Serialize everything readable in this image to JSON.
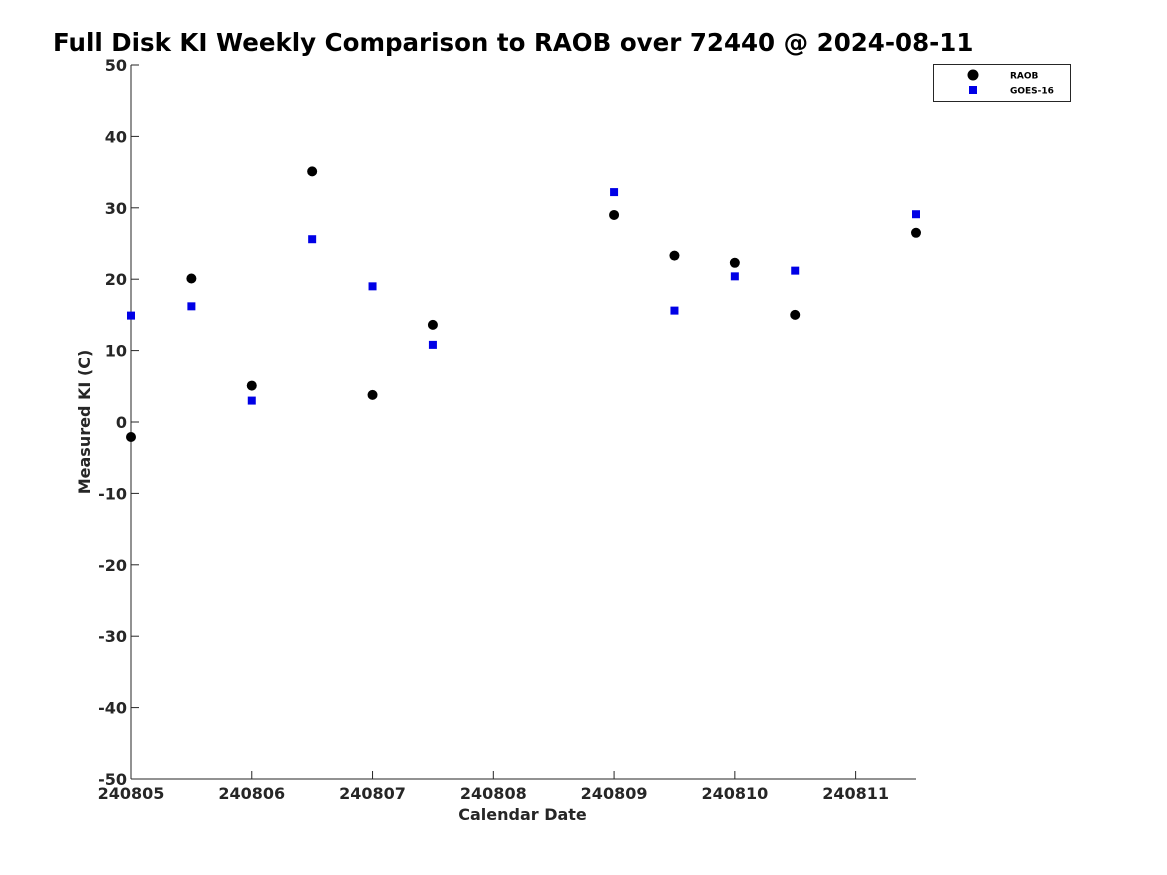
{
  "chart_data": {
    "type": "scatter",
    "title": "Full Disk KI Weekly Comparison to RAOB over 72440 @ 2024-08-11",
    "xlabel": "Calendar Date",
    "ylabel": "Measured KI (C)",
    "xlim": [
      "2024-08-05",
      "2024-08-11 12:00"
    ],
    "ylim": [
      -50,
      50
    ],
    "x_ticks": [
      "240805",
      "240806",
      "240807",
      "240808",
      "240809",
      "240810",
      "240811"
    ],
    "y_ticks": [
      "50",
      "40",
      "30",
      "20",
      "10",
      "0",
      "-10",
      "-20",
      "-30",
      "-40",
      "-50"
    ],
    "grid": false,
    "legend_position": "top-right",
    "series": [
      {
        "name": "RAOB",
        "marker": "circle",
        "color": "#000000",
        "points": [
          {
            "x": "2024-08-05 00:00",
            "y": -2.1
          },
          {
            "x": "2024-08-05 12:00",
            "y": 20.1
          },
          {
            "x": "2024-08-06 00:00",
            "y": 5.1
          },
          {
            "x": "2024-08-06 12:00",
            "y": 35.1
          },
          {
            "x": "2024-08-07 00:00",
            "y": 3.8
          },
          {
            "x": "2024-08-07 12:00",
            "y": 13.6
          },
          {
            "x": "2024-08-09 00:00",
            "y": 29.0
          },
          {
            "x": "2024-08-09 12:00",
            "y": 23.3
          },
          {
            "x": "2024-08-10 00:00",
            "y": 22.3
          },
          {
            "x": "2024-08-10 12:00",
            "y": 15.0
          },
          {
            "x": "2024-08-11 12:00",
            "y": 26.5
          }
        ]
      },
      {
        "name": "GOES-16",
        "marker": "square",
        "color": "#0000e6",
        "points": [
          {
            "x": "2024-08-05 00:00",
            "y": 14.9
          },
          {
            "x": "2024-08-05 12:00",
            "y": 16.2
          },
          {
            "x": "2024-08-06 00:00",
            "y": 3.0
          },
          {
            "x": "2024-08-06 12:00",
            "y": 25.6
          },
          {
            "x": "2024-08-07 00:00",
            "y": 19.0
          },
          {
            "x": "2024-08-07 12:00",
            "y": 10.8
          },
          {
            "x": "2024-08-09 00:00",
            "y": 32.2
          },
          {
            "x": "2024-08-09 12:00",
            "y": 15.6
          },
          {
            "x": "2024-08-10 00:00",
            "y": 20.4
          },
          {
            "x": "2024-08-10 12:00",
            "y": 21.2
          },
          {
            "x": "2024-08-11 12:00",
            "y": 29.1
          }
        ]
      }
    ]
  }
}
